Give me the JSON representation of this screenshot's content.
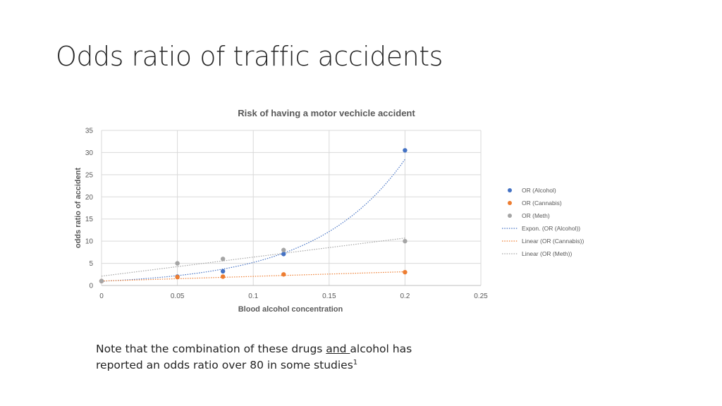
{
  "slide": {
    "title": "Odds ratio of traffic accidents"
  },
  "note": {
    "part1": "Note that the combination of these drugs ",
    "underlined": "and ",
    "part2": "alcohol has",
    "line2": "reported an odds ratio over 80 in some studies",
    "superscript": "1"
  },
  "chart_data": {
    "type": "scatter",
    "title": "Risk of having a motor vechicle accident",
    "xlabel": "Blood alcohol concentration",
    "ylabel": "odds ratio of accident",
    "xlim": [
      0,
      0.25
    ],
    "ylim": [
      0,
      35
    ],
    "x_ticks": [
      "0",
      "0.05",
      "0.1",
      "0.15",
      "0.2",
      "0.25"
    ],
    "y_ticks": [
      "0",
      "5",
      "10",
      "15",
      "20",
      "25",
      "30",
      "35"
    ],
    "grid": true,
    "legend_position": "right",
    "series": [
      {
        "name": "OR (Alcohol)",
        "color": "#4472c4",
        "points": [
          [
            0,
            1
          ],
          [
            0.05,
            2
          ],
          [
            0.08,
            3.2
          ],
          [
            0.12,
            7.1
          ],
          [
            0.2,
            30.5
          ]
        ]
      },
      {
        "name": "OR (Cannabis)",
        "color": "#ed7d31",
        "points": [
          [
            0,
            1
          ],
          [
            0.05,
            1.9
          ],
          [
            0.08,
            2
          ],
          [
            0.12,
            2.5
          ],
          [
            0.2,
            3
          ]
        ]
      },
      {
        "name": "OR (Meth)",
        "color": "#a5a5a5",
        "points": [
          [
            0,
            1
          ],
          [
            0.05,
            5
          ],
          [
            0.08,
            6
          ],
          [
            0.12,
            8
          ],
          [
            0.2,
            10
          ]
        ]
      }
    ],
    "trendlines": [
      {
        "name": "Expon. (OR (Alcohol))",
        "kind": "exponential",
        "color": "#4472c4",
        "a": 0.95,
        "b": 17.0
      },
      {
        "name": "Linear (OR (Cannabis))",
        "kind": "linear",
        "color": "#ed7d31",
        "slope": 10.5,
        "intercept": 1.0
      },
      {
        "name": "Linear (OR (Meth))",
        "kind": "linear",
        "color": "#a5a5a5",
        "slope": 43.0,
        "intercept": 2.1
      }
    ]
  }
}
